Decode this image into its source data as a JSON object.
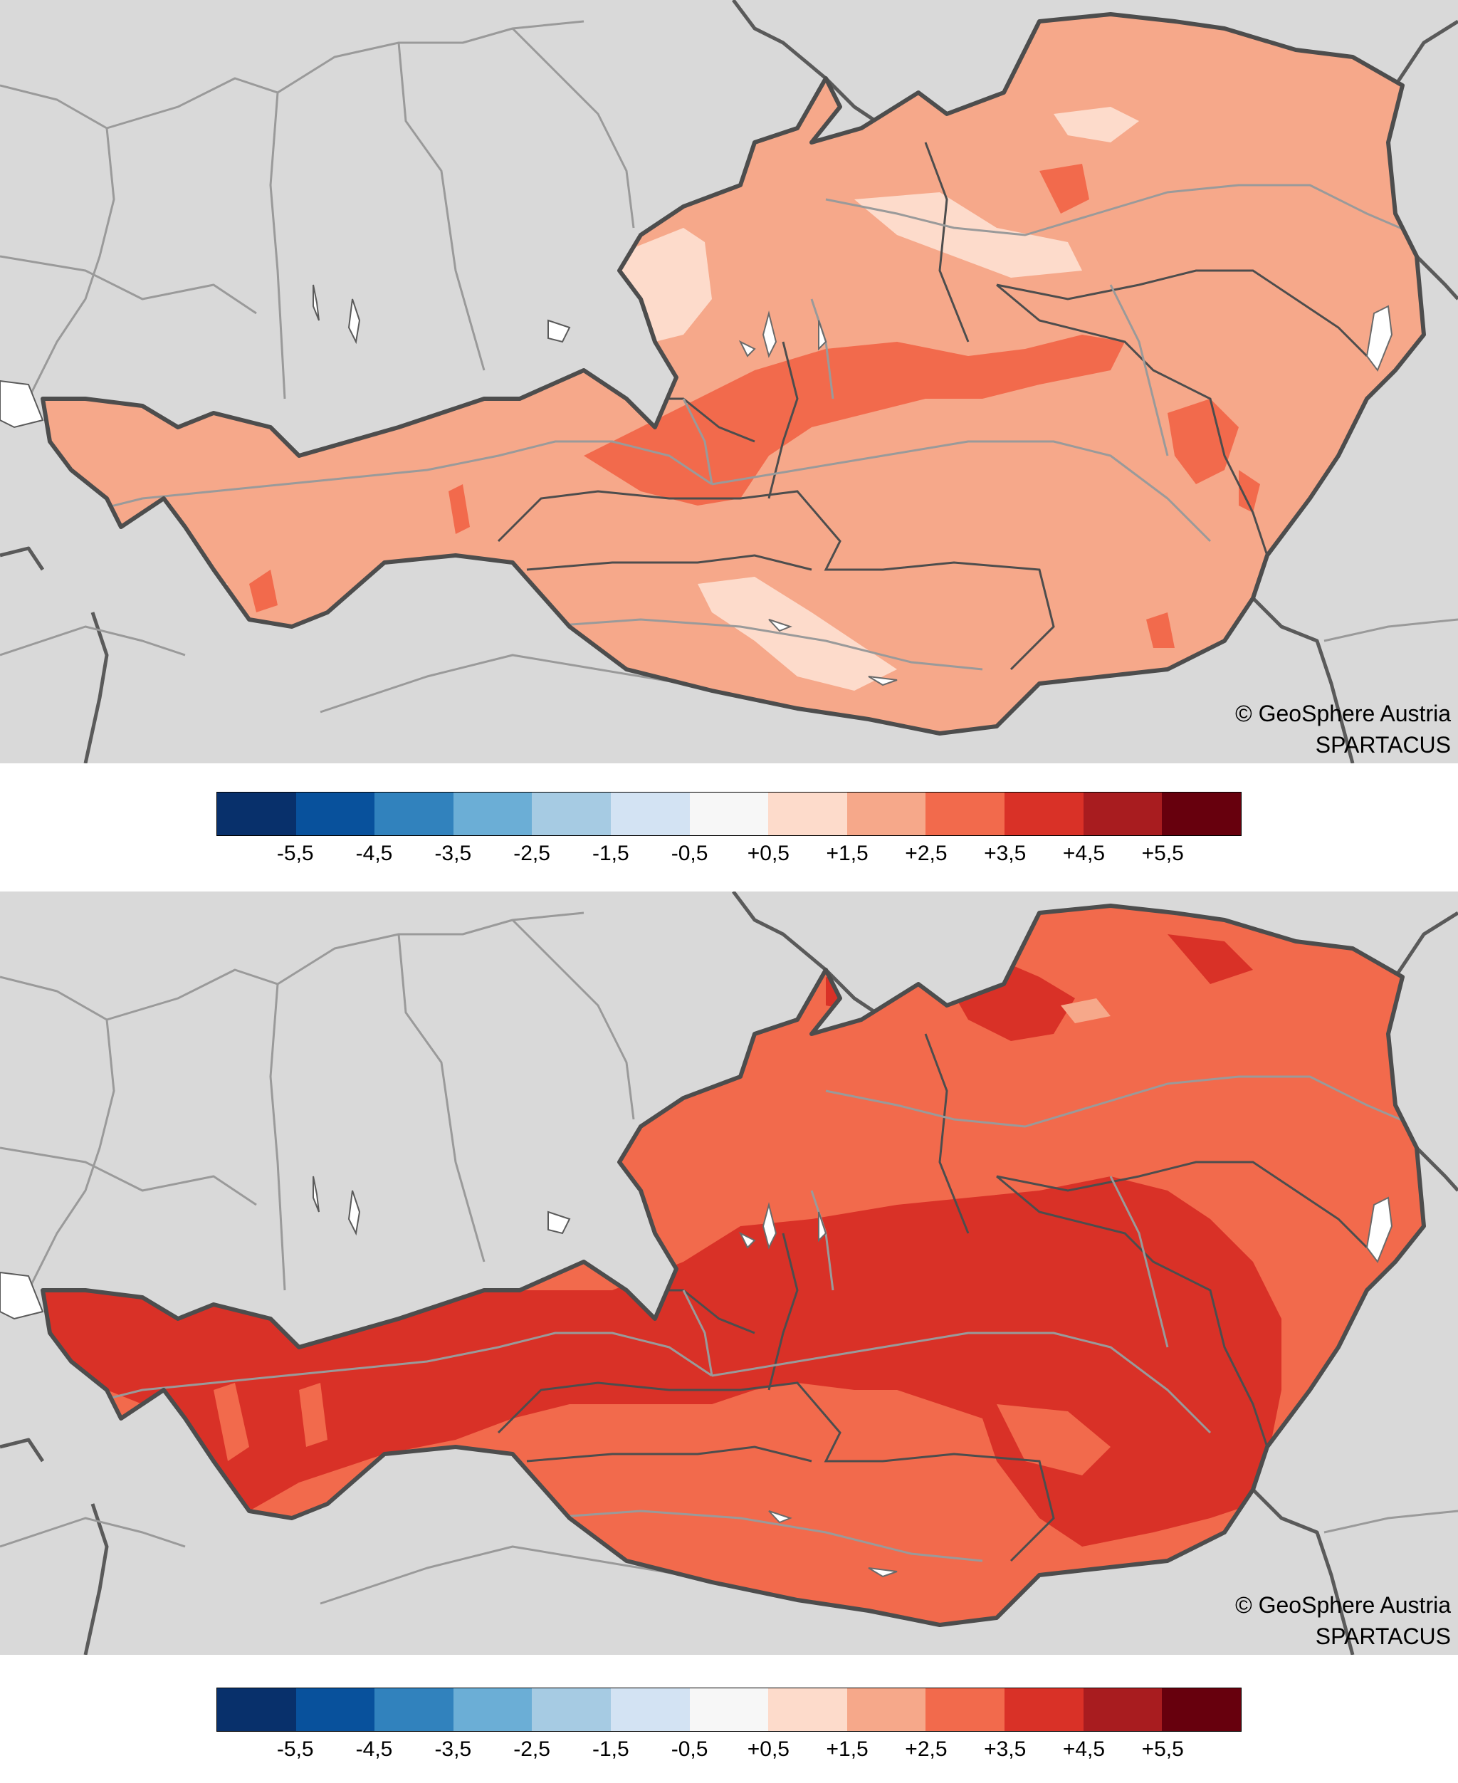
{
  "maps": [
    {
      "credit": "© GeoSphere Austria",
      "source": "SPARTACUS",
      "base_class_color": "#f6a88a",
      "patches": [
        {
          "class": "+0,5 … +1,5",
          "color": "#fdd8c8"
        },
        {
          "class": "+2,5 … +3,5",
          "color": "#f26a4c"
        }
      ]
    },
    {
      "credit": "© GeoSphere Austria",
      "source": "SPARTACUS",
      "base_class_color": "#f26a4c",
      "patches": [
        {
          "class": "+3,5 … +4,5",
          "color": "#dc2e2a"
        },
        {
          "class": "+1,5 … +2,5",
          "color": "#f6a88a"
        }
      ]
    }
  ],
  "legend": {
    "colors": [
      "#08306b",
      "#08519c",
      "#3182bd",
      "#6baed6",
      "#a6cbe3",
      "#d3e3f3",
      "#f7f7f7",
      "#fddbcb",
      "#f6a88a",
      "#f26a4c",
      "#d93127",
      "#a81c1f",
      "#67000d"
    ],
    "ticks": [
      "-5,5",
      "-4,5",
      "-3,5",
      "-2,5",
      "-1,5",
      "-0,5",
      "+0,5",
      "+1,5",
      "+2,5",
      "+3,5",
      "+4,5",
      "+5,5"
    ]
  },
  "colors": {
    "background": "#d9d9d9",
    "country_border": "#4d4d4d",
    "neighbour_borders": "#5a5a5a",
    "rivers": "#9a9a9a",
    "lakes": "#ffffff"
  }
}
